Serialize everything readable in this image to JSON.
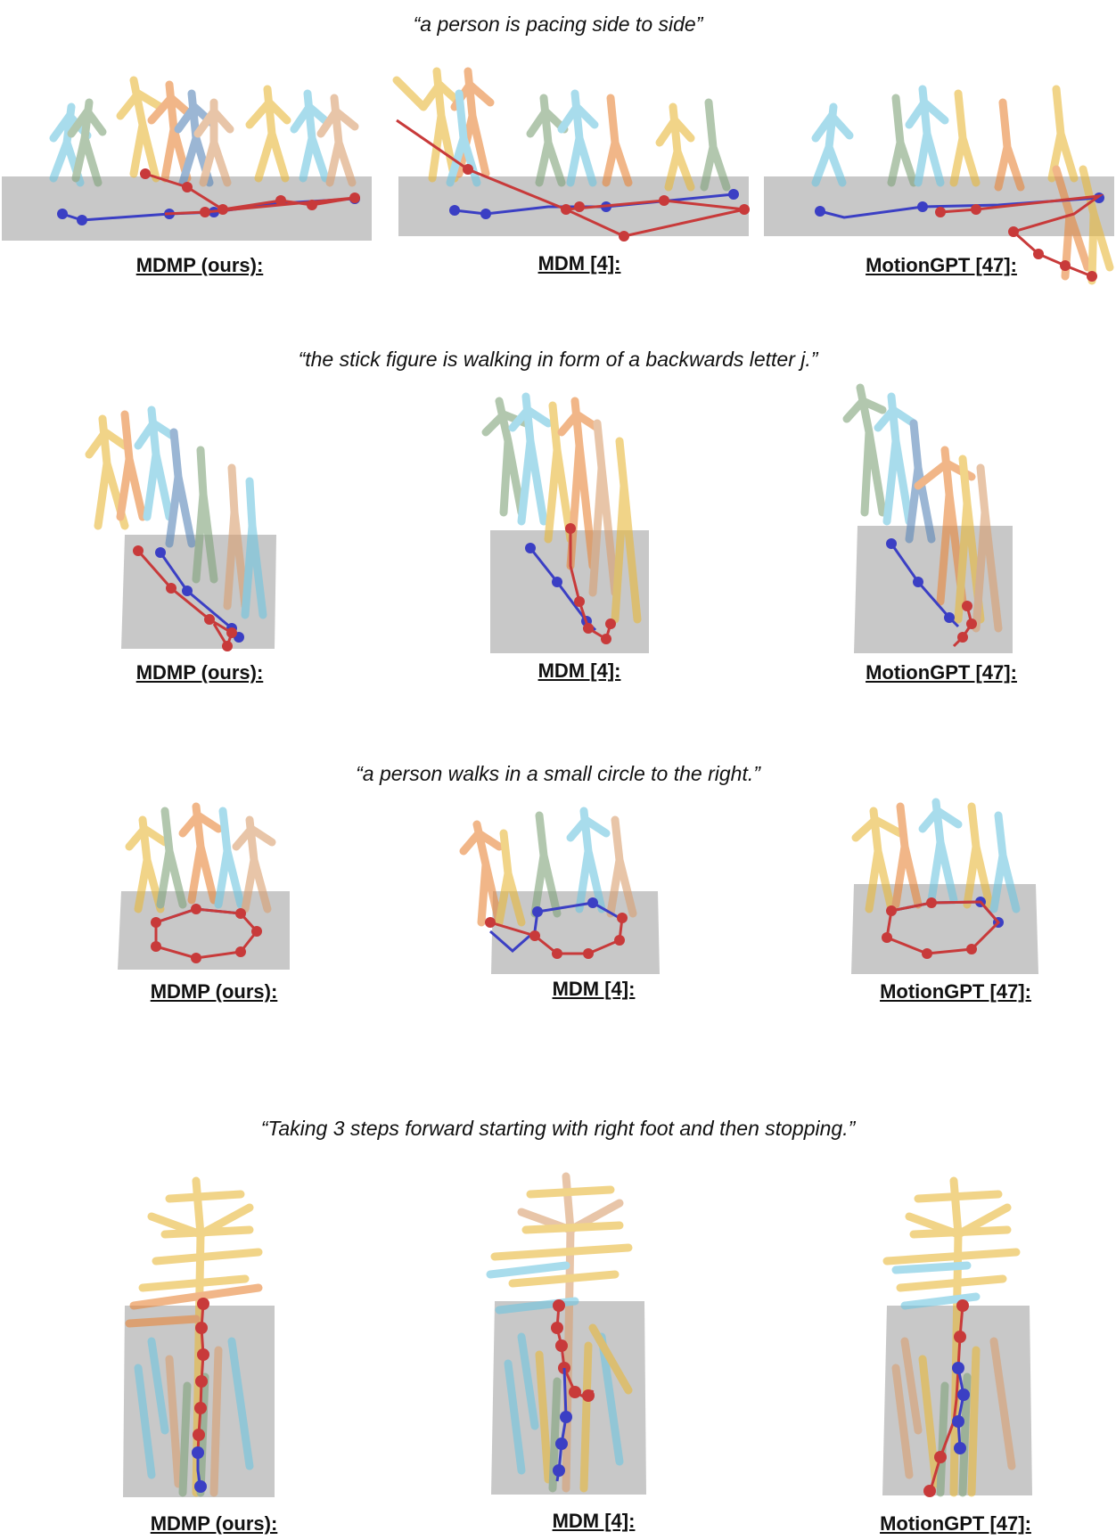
{
  "rows": [
    {
      "caption": "“a person is pacing side to side”",
      "labels": [
        "MDMP (ours):",
        "MDM [4]:",
        "MotionGPT [47]:"
      ]
    },
    {
      "caption": "“the stick figure is walking in form of a backwards letter j.”",
      "labels": [
        "MDMP (ours):",
        "MDM [4]:",
        "MotionGPT [47]:"
      ]
    },
    {
      "caption": "“a person walks in a small circle to the right.”",
      "labels": [
        "MDMP (ours):",
        "MDM [4]:",
        "MotionGPT [47]:"
      ]
    },
    {
      "caption": "“Taking 3 steps forward starting with right foot and then stopping.”",
      "labels": [
        "MDMP (ours):",
        "MDM [4]:",
        "MotionGPT [47]:"
      ]
    }
  ],
  "colors": {
    "ground": "#c8c8c8",
    "gt_path": "#3b3fc4",
    "pred_path": "#c83a3a",
    "figures": [
      "#6fc6e0",
      "#e8b83a",
      "#e8873a",
      "#7fa37a",
      "#5a86b8",
      "#d9a070",
      "#b9c7d9"
    ]
  }
}
